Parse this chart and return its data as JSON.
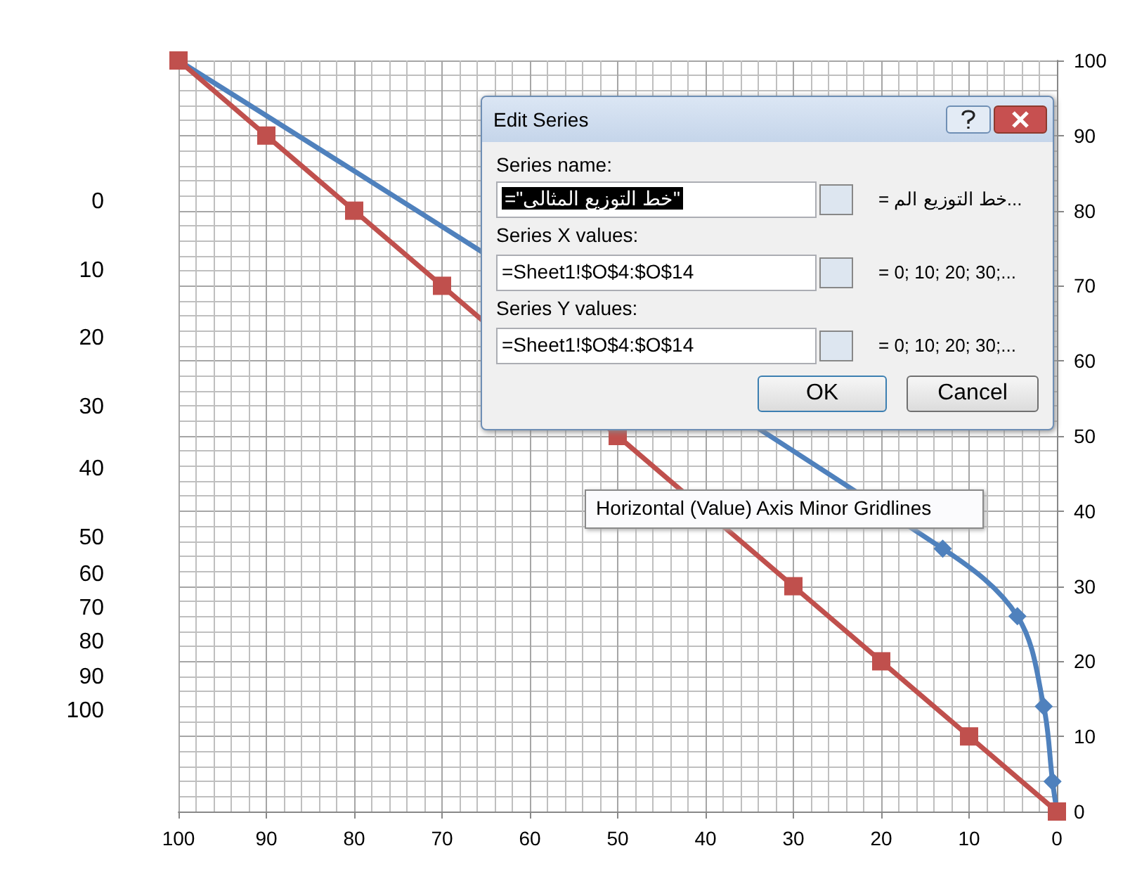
{
  "chart_data": {
    "type": "line",
    "xlim": [
      100,
      0
    ],
    "xticks": [
      100,
      90,
      80,
      70,
      60,
      50,
      40,
      30,
      20,
      10,
      0
    ],
    "ylim": [
      0,
      100
    ],
    "yticks": [
      0,
      10,
      20,
      30,
      40,
      50,
      60,
      70,
      80,
      90,
      100
    ],
    "grid": true,
    "line_style": "solid",
    "series": [
      {
        "color": "#4f81bd",
        "marker": "diamond",
        "x": [
          100,
          13,
          4.5,
          1.5,
          0.5,
          0
        ],
        "values": [
          100,
          35,
          26,
          14,
          4,
          0
        ]
      },
      {
        "color": "#c0504d",
        "marker": "square",
        "x": [
          100,
          90,
          80,
          70,
          60,
          50,
          40,
          30,
          20,
          10,
          0
        ],
        "values": [
          100,
          90,
          80,
          70,
          null,
          50,
          null,
          30,
          20,
          10,
          0
        ]
      }
    ],
    "annotations": [
      "Edit Series",
      "Series name:",
      "=\"خط التوزيع المثالى\"",
      "...خط التوزيع الم =",
      "Series X values:",
      "=Sheet1!$O$4:$O$14",
      "= 0; 10; 20; 30;...",
      "Series Y values:",
      "=Sheet1!$O$4:$O$14",
      "= 0; 10; 20; 30;...",
      "OK",
      "Cancel",
      "Horizontal (Value) Axis Minor Gridlines",
      "0",
      "10",
      "20",
      "30",
      "40",
      "50",
      "60",
      "70",
      "80",
      "90",
      "100"
    ]
  }
}
